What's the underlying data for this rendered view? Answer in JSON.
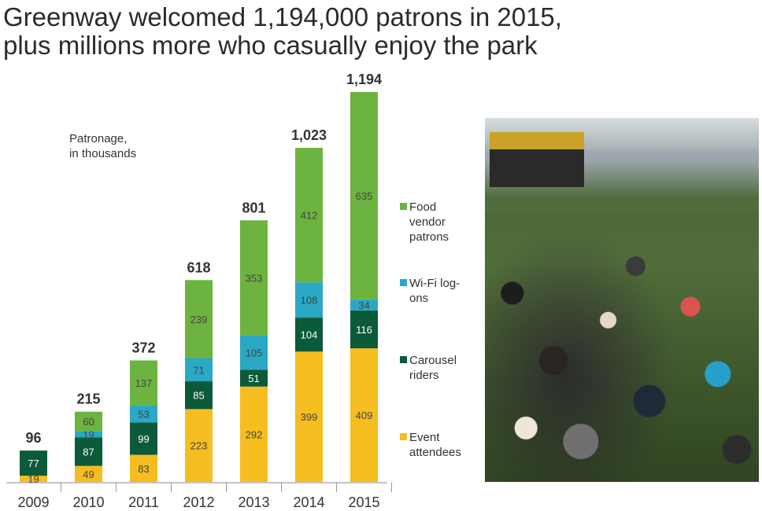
{
  "title": {
    "line1": "Greenway welcomed 1,194,000 patrons in 2015,",
    "line2": "plus millions more who casually enjoy the park"
  },
  "chart_data": {
    "type": "bar",
    "stacked": true,
    "note": "Patronage,\nin thousands",
    "categories": [
      "2009",
      "2010",
      "2011",
      "2012",
      "2013",
      "2014",
      "2015"
    ],
    "totals": [
      96,
      215,
      372,
      618,
      801,
      1023,
      1194
    ],
    "total_labels": [
      "96",
      "215",
      "372",
      "618",
      "801",
      "1,023",
      "1,194"
    ],
    "series": [
      {
        "name": "Event attendees",
        "color": "#f5bd1f",
        "values": [
          19,
          49,
          83,
          223,
          292,
          399,
          409
        ]
      },
      {
        "name": "Carousel riders",
        "color": "#0b5a3a",
        "values": [
          77,
          87,
          99,
          85,
          51,
          104,
          116
        ]
      },
      {
        "name": "Wi-Fi log-ons",
        "color": "#2aa8c4",
        "values": [
          0,
          19,
          53,
          71,
          105,
          108,
          34
        ]
      },
      {
        "name": "Food vendor patrons",
        "color": "#6db33f",
        "values": [
          0,
          60,
          137,
          239,
          353,
          412,
          635
        ]
      }
    ],
    "legend": [
      {
        "lines": [
          "Food",
          "vendor",
          "patrons"
        ],
        "color": "#6db33f"
      },
      {
        "lines": [
          "Wi-Fi log-",
          "ons"
        ],
        "color": "#2aa8c4"
      },
      {
        "lines": [
          "Carousel",
          "riders"
        ],
        "color": "#0b5a3a"
      },
      {
        "lines": [
          "Event",
          "attendees"
        ],
        "color": "#f5bd1f"
      }
    ],
    "legend_position": "right",
    "grid": false
  }
}
